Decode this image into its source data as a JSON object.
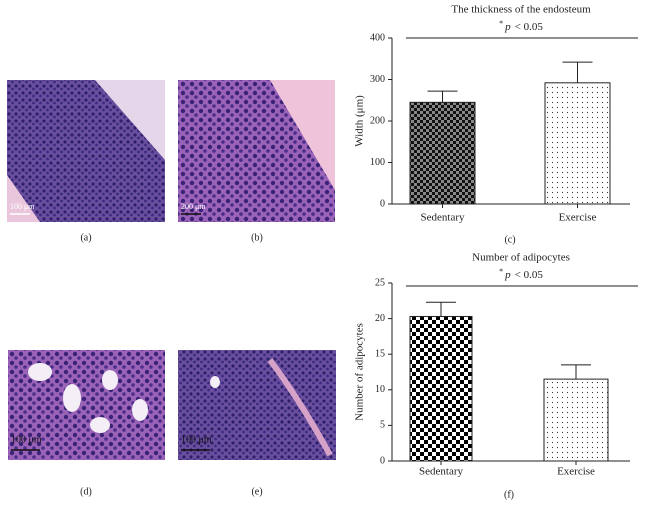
{
  "panel_labels": [
    "(a)",
    "(b)",
    "(d)",
    "(e)"
  ],
  "scale_bars": [
    "100 μm",
    "200 μm",
    "100 μm",
    "100 μm"
  ],
  "chart_data": [
    {
      "type": "bar",
      "panel_label": "(c)",
      "title": "The thickness of the endosteum",
      "sig_marker": "*",
      "sig_symbol": "p",
      "sig_text": "< 0.05",
      "ylabel": "Width (μm)",
      "categories": [
        "Sedentary",
        "Exercise"
      ],
      "values": [
        245,
        292
      ],
      "errors": [
        27,
        50
      ],
      "ylim": [
        0,
        400
      ],
      "yticks": [
        0,
        100,
        200,
        300,
        400
      ]
    },
    {
      "type": "bar",
      "panel_label": "(f)",
      "title": "Number of adipocytes",
      "sig_marker": "*",
      "sig_symbol": "p",
      "sig_text": "< 0.05",
      "ylabel": "Number of adipocytes",
      "categories": [
        "Sedentary",
        "Exercise"
      ],
      "values": [
        20.3,
        11.5
      ],
      "errors": [
        2.0,
        2.0
      ],
      "ylim": [
        0,
        25
      ],
      "yticks": [
        0,
        5,
        10,
        15,
        20,
        25
      ]
    }
  ]
}
